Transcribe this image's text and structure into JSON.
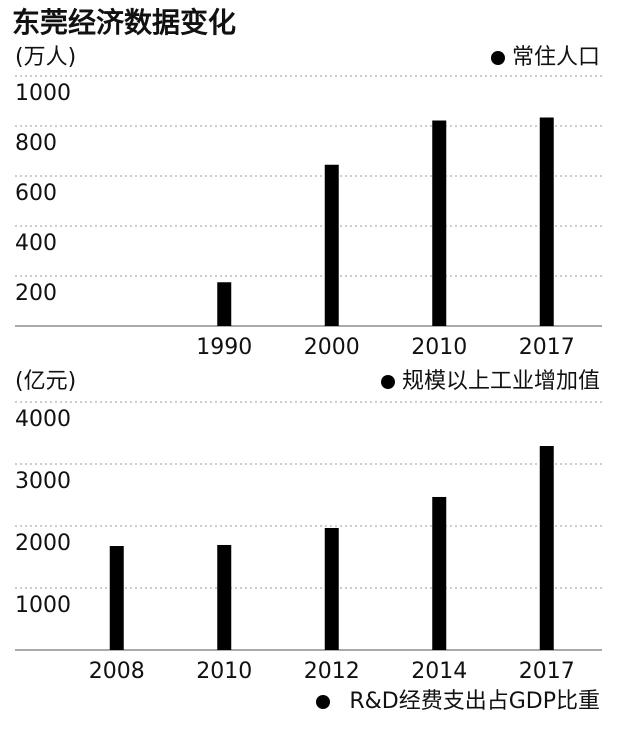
{
  "title": "东莞经济数据变化",
  "chart_data": [
    {
      "type": "bar",
      "y_label": "(万人)",
      "categories": [
        "1990",
        "2000",
        "2010",
        "2017"
      ],
      "series": [
        {
          "name": "常住人口",
          "color": "#000000",
          "values": [
            175,
            645,
            822,
            834
          ]
        }
      ],
      "ylim": [
        0,
        1000
      ],
      "yticks": [
        200,
        400,
        600,
        800,
        1000
      ],
      "grid": true
    },
    {
      "type": "bar",
      "y_label": "(亿元)",
      "categories": [
        "2008",
        "2010",
        "2012",
        "2014",
        "2017"
      ],
      "series": [
        {
          "name": "规模以上工业增加值",
          "color": "#000000",
          "values": [
            1677,
            1694,
            1968,
            2468,
            3290
          ]
        }
      ],
      "ylim": [
        0,
        4000
      ],
      "yticks": [
        1000,
        2000,
        3000,
        4000
      ],
      "grid": true
    }
  ],
  "next_legend": "R&D经费支出占GDP比重"
}
